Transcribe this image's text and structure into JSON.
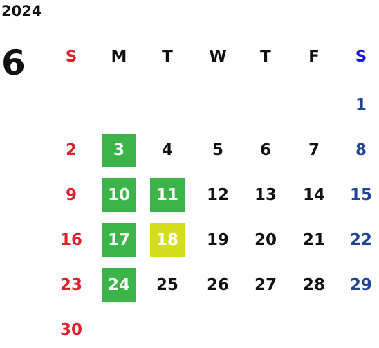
{
  "header": {
    "year": "2024",
    "month": "6"
  },
  "weekdays": [
    "S",
    "M",
    "T",
    "W",
    "T",
    "F",
    "S"
  ],
  "weeks": [
    [
      null,
      null,
      null,
      null,
      null,
      null,
      1
    ],
    [
      2,
      3,
      4,
      5,
      6,
      7,
      8
    ],
    [
      9,
      10,
      11,
      12,
      13,
      14,
      15
    ],
    [
      16,
      17,
      18,
      19,
      20,
      21,
      22
    ],
    [
      23,
      24,
      25,
      26,
      27,
      28,
      29
    ],
    [
      30
    ]
  ],
  "colors": {
    "sunday": "#e0202a",
    "saturday_header": "#1a1ad8",
    "saturday": "#1f4596",
    "weekday": "#111111",
    "highlight_text": "#ffffff"
  },
  "highlights": [
    {
      "day": 3,
      "color": "#3bb54a"
    },
    {
      "day": 10,
      "color": "#3bb54a"
    },
    {
      "day": 11,
      "color": "#3bb54a"
    },
    {
      "day": 17,
      "color": "#3bb54a"
    },
    {
      "day": 18,
      "color": "#d4dc1f"
    },
    {
      "day": 24,
      "color": "#3bb54a"
    }
  ]
}
